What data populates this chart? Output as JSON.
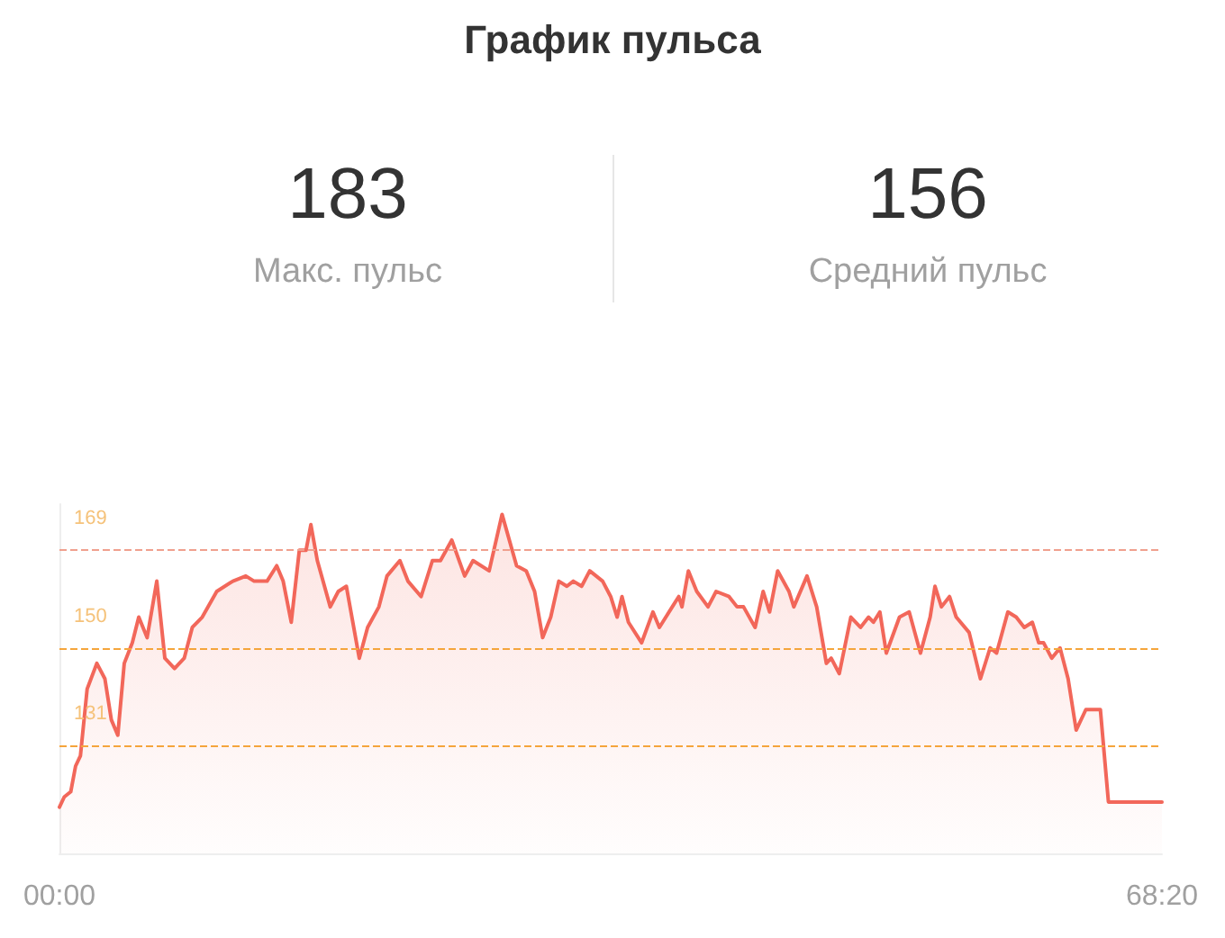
{
  "chart_data": {
    "type": "area",
    "title": "График пульса",
    "annotations": [
      "183",
      "Макс. пульс",
      "156",
      "Средний пульс"
    ],
    "x": [
      0,
      18,
      42,
      60,
      78,
      103,
      139,
      169,
      193,
      217,
      241,
      271,
      295,
      326,
      362,
      392,
      428,
      464,
      494,
      531,
      585,
      645,
      693,
      724,
      772,
      808,
      832,
      862,
      892,
      917,
      935,
      959,
      1007,
      1037,
      1067,
      1115,
      1146,
      1188,
      1218,
      1266,
      1296,
      1345,
      1387,
      1417,
      1459,
      1507,
      1538,
      1598,
      1646,
      1700,
      1736,
      1767,
      1797,
      1827,
      1857,
      1887,
      1911,
      1942,
      1972,
      2020,
      2050,
      2074,
      2092,
      2116,
      2165,
      2207,
      2231,
      2279,
      2303,
      2315,
      2339,
      2370,
      2412,
      2442,
      2490,
      2520,
      2544,
      2587,
      2617,
      2641,
      2671,
      2713,
      2731,
      2780,
      2816,
      2852,
      2870,
      2900,
      2943,
      2979,
      3009,
      3027,
      3051,
      3075,
      3124,
      3160,
      3202,
      3238,
      3256,
      3280,
      3310,
      3335,
      3383,
      3425,
      3461,
      3485,
      3527,
      3558,
      3588,
      3618,
      3642,
      3660,
      3690,
      3721,
      3751,
      3781,
      3817,
      3871,
      3901,
      4100
    ],
    "series": [
      {
        "color": "#f2675a",
        "values": [
          119,
          121,
          122,
          127,
          129,
          142,
          147,
          144,
          136,
          133,
          147,
          151,
          156,
          152,
          163,
          148,
          146,
          148,
          154,
          156,
          161,
          163,
          164,
          163,
          163,
          166,
          163,
          155,
          169,
          169,
          174,
          167,
          158,
          161,
          162,
          148,
          154,
          158,
          164,
          167,
          163,
          160,
          167,
          167,
          171,
          164,
          167,
          165,
          176,
          166,
          165,
          161,
          152,
          156,
          163,
          162,
          163,
          162,
          165,
          163,
          160,
          156,
          160,
          155,
          151,
          157,
          154,
          158,
          160,
          158,
          165,
          161,
          158,
          161,
          160,
          158,
          158,
          154,
          161,
          157,
          165,
          161,
          158,
          164,
          158,
          147,
          148,
          145,
          156,
          154,
          156,
          155,
          157,
          149,
          156,
          157,
          149,
          156,
          162,
          158,
          160,
          156,
          153,
          144,
          150,
          149,
          157,
          156,
          154,
          155,
          151,
          151,
          148,
          150,
          144,
          134,
          138,
          138,
          120,
          120
        ]
      }
    ],
    "xlim": [
      0,
      4100
    ],
    "xticks": [
      {
        "value": 0,
        "label": "00:00"
      },
      {
        "value": 4100,
        "label": "68:20"
      }
    ],
    "ylim": [
      110,
      178
    ],
    "ref_lines": [
      {
        "axis": "y",
        "value": 169,
        "label": "169",
        "color": "#f0a08e",
        "line_style": "dashed"
      },
      {
        "axis": "y",
        "value": 150,
        "label": "150",
        "color": "#f5a53c",
        "line_style": "dashed"
      },
      {
        "axis": "y",
        "value": 131,
        "label": "131",
        "color": "#f5a53c",
        "line_style": "dashed"
      }
    ],
    "tick_labels": "x",
    "marker": "none"
  }
}
